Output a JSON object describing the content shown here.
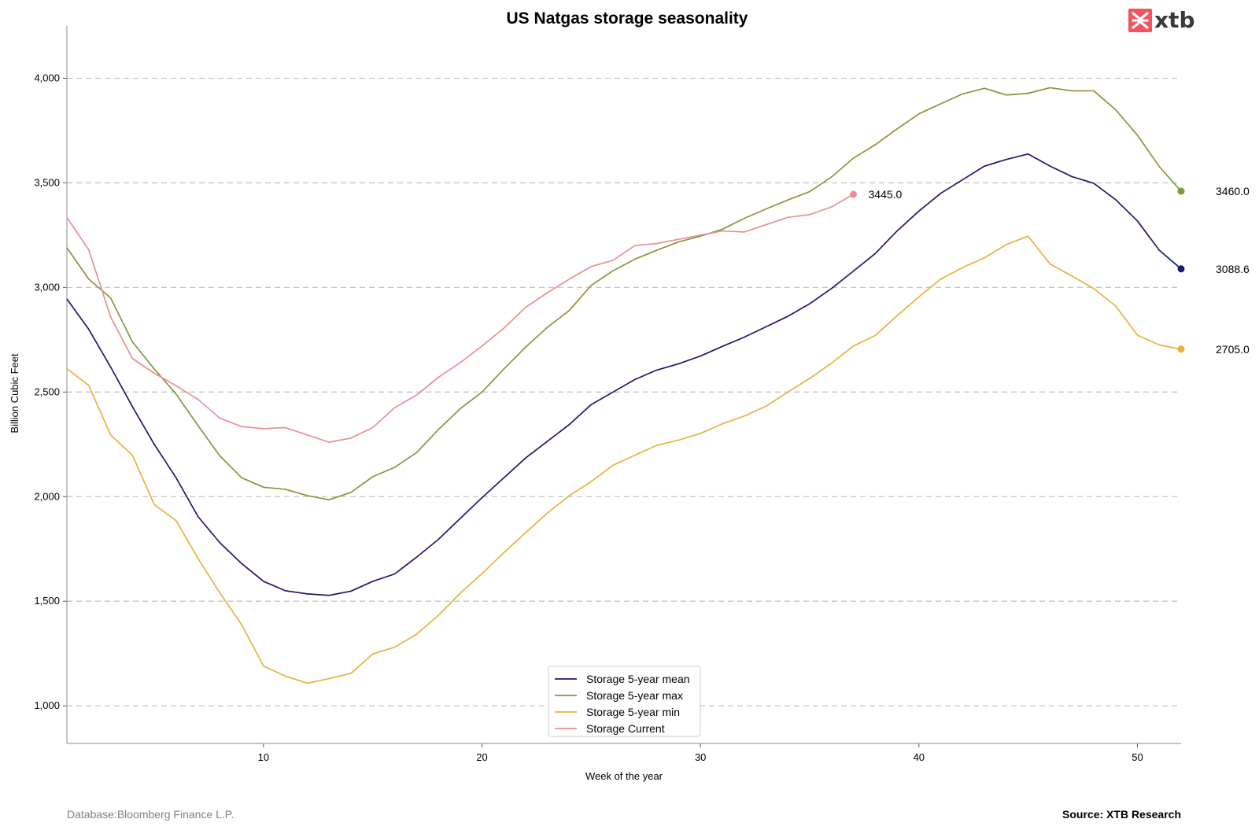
{
  "chart_data": {
    "type": "line",
    "title": "US Natgas storage seasonality",
    "xlabel": "Week of the year",
    "ylabel": "Billion Cubic Feet",
    "xlim": [
      1,
      52
    ],
    "ylim": [
      820,
      4250
    ],
    "x_ticks": [
      10,
      20,
      30,
      40,
      50
    ],
    "y_ticks": [
      1000,
      1500,
      2000,
      2500,
      3000,
      3500,
      4000
    ],
    "y_tick_labels": [
      "1,000",
      "1,500",
      "2,000",
      "2,500",
      "3,000",
      "3,500",
      "4,000"
    ],
    "grid": "horizontal dashed",
    "legend_position": "bottom-center",
    "series": [
      {
        "name": "Storage 5-year mean",
        "color": "#1a1a6e",
        "x": [
          1,
          2,
          3,
          4,
          5,
          6,
          7,
          8,
          9,
          10,
          11,
          12,
          13,
          14,
          15,
          16,
          17,
          18,
          19,
          20,
          21,
          22,
          23,
          24,
          25,
          26,
          27,
          28,
          29,
          30,
          31,
          32,
          33,
          34,
          35,
          36,
          37,
          38,
          39,
          40,
          41,
          42,
          43,
          44,
          45,
          46,
          47,
          48,
          49,
          50,
          51,
          52
        ],
        "values": [
          2945,
          2800,
          2620,
          2430,
          2250,
          2090,
          1905,
          1780,
          1680,
          1595,
          1550,
          1535,
          1528,
          1548,
          1595,
          1630,
          1710,
          1795,
          1895,
          1995,
          2090,
          2185,
          2265,
          2345,
          2440,
          2500,
          2560,
          2605,
          2635,
          2672,
          2718,
          2762,
          2812,
          2862,
          2922,
          2995,
          3078,
          3162,
          3270,
          3365,
          3450,
          3515,
          3580,
          3612,
          3638,
          3580,
          3530,
          3498,
          3420,
          3318,
          3178,
          3088.6
        ],
        "end_label": "3088.6"
      },
      {
        "name": "Storage 5-year max",
        "color": "#7f9a3c",
        "x": [
          1,
          2,
          3,
          4,
          5,
          6,
          7,
          8,
          9,
          10,
          11,
          12,
          13,
          14,
          15,
          16,
          17,
          18,
          19,
          20,
          21,
          22,
          23,
          24,
          25,
          26,
          27,
          28,
          29,
          30,
          31,
          32,
          33,
          34,
          35,
          36,
          37,
          38,
          39,
          40,
          41,
          42,
          43,
          44,
          45,
          46,
          47,
          48,
          49,
          50,
          51,
          52
        ],
        "values": [
          3190,
          3040,
          2950,
          2740,
          2610,
          2490,
          2340,
          2195,
          2090,
          2045,
          2035,
          2005,
          1985,
          2020,
          2095,
          2140,
          2210,
          2320,
          2420,
          2500,
          2610,
          2715,
          2810,
          2890,
          3010,
          3080,
          3135,
          3178,
          3218,
          3245,
          3278,
          3330,
          3375,
          3418,
          3458,
          3528,
          3618,
          3682,
          3758,
          3830,
          3878,
          3925,
          3952,
          3920,
          3928,
          3955,
          3940,
          3940,
          3850,
          3728,
          3578,
          3460
        ],
        "end_label": "3460.0"
      },
      {
        "name": "Storage 5-year min",
        "color": "#e8b13d",
        "x": [
          1,
          2,
          3,
          4,
          5,
          6,
          7,
          8,
          9,
          10,
          11,
          12,
          13,
          14,
          15,
          16,
          17,
          18,
          19,
          20,
          21,
          22,
          23,
          24,
          25,
          26,
          27,
          28,
          29,
          30,
          31,
          32,
          33,
          34,
          35,
          36,
          37,
          38,
          39,
          40,
          41,
          42,
          43,
          44,
          45,
          46,
          47,
          48,
          49,
          50,
          51,
          52
        ],
        "values": [
          2612,
          2532,
          2295,
          2198,
          1962,
          1885,
          1705,
          1540,
          1388,
          1190,
          1142,
          1108,
          1130,
          1155,
          1248,
          1280,
          1342,
          1432,
          1538,
          1632,
          1732,
          1828,
          1922,
          2005,
          2072,
          2150,
          2198,
          2245,
          2270,
          2302,
          2348,
          2385,
          2432,
          2500,
          2565,
          2638,
          2720,
          2770,
          2865,
          2955,
          3040,
          3095,
          3142,
          3205,
          3245,
          3112,
          3055,
          2995,
          2912,
          2772,
          2725,
          2705
        ],
        "end_label": "2705.0"
      },
      {
        "name": "Storage Current",
        "color": "#e98f93",
        "x": [
          1,
          2,
          3,
          4,
          5,
          6,
          7,
          8,
          9,
          10,
          11,
          12,
          13,
          14,
          15,
          16,
          17,
          18,
          19,
          20,
          21,
          22,
          23,
          24,
          25,
          26,
          27,
          28,
          29,
          30,
          31,
          32,
          33,
          34,
          35,
          36,
          37
        ],
        "values": [
          3335,
          3180,
          2860,
          2660,
          2590,
          2530,
          2465,
          2375,
          2335,
          2325,
          2330,
          2295,
          2260,
          2280,
          2330,
          2425,
          2485,
          2570,
          2640,
          2720,
          2805,
          2905,
          2975,
          3040,
          3100,
          3130,
          3200,
          3210,
          3230,
          3250,
          3270,
          3265,
          3300,
          3335,
          3348,
          3385,
          3445
        ],
        "end_label": "3445.0"
      }
    ]
  },
  "footer": {
    "left": "Database:Bloomberg Finance L.P.",
    "right": "Source: XTB Research"
  },
  "logo": {
    "text": "xtb",
    "brand_color": "#f3545f",
    "icon": "xtb-x-logo-icon"
  }
}
